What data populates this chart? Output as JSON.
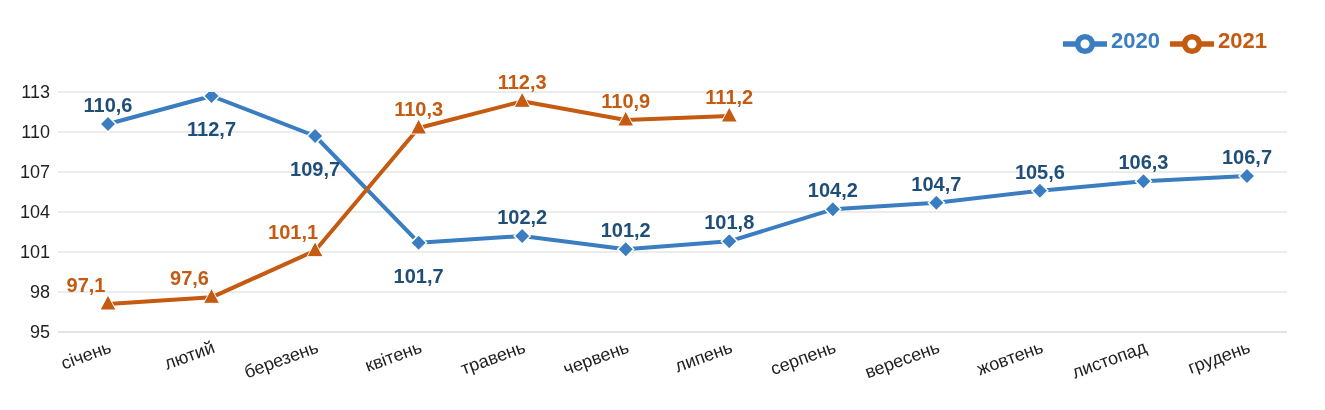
{
  "chart_data": {
    "type": "line",
    "categories": [
      "січень",
      "лютий",
      "березень",
      "квітень",
      "травень",
      "червень",
      "липень",
      "серпень",
      "вересень",
      "жовтень",
      "листопад",
      "грудень"
    ],
    "series": [
      {
        "name": "2020",
        "color": "#3a7dc0",
        "marker": "diamond",
        "values": [
          110.6,
          112.7,
          109.7,
          101.7,
          102.2,
          101.2,
          101.8,
          104.2,
          104.7,
          105.6,
          106.3,
          106.7
        ],
        "value_labels": [
          "110,6",
          "112,7",
          "109,7",
          "101,7",
          "102,2",
          "101,2",
          "101,8",
          "104,2",
          "104,7",
          "105,6",
          "106,3",
          "106,7"
        ]
      },
      {
        "name": "2021",
        "color": "#c55a11",
        "marker": "triangle",
        "values": [
          97.1,
          97.6,
          101.1,
          110.3,
          112.3,
          110.9,
          111.2,
          null,
          null,
          null,
          null,
          null
        ],
        "value_labels": [
          "97,1",
          "97,6",
          "101,1",
          "110,3",
          "112,3",
          "110,9",
          "111,2",
          null,
          null,
          null,
          null,
          null
        ]
      }
    ],
    "ylim": [
      95,
      113
    ],
    "yticks": [
      95,
      98,
      101,
      104,
      107,
      110,
      113
    ],
    "grid": "y",
    "legend": "top right",
    "line_style": "solid"
  }
}
